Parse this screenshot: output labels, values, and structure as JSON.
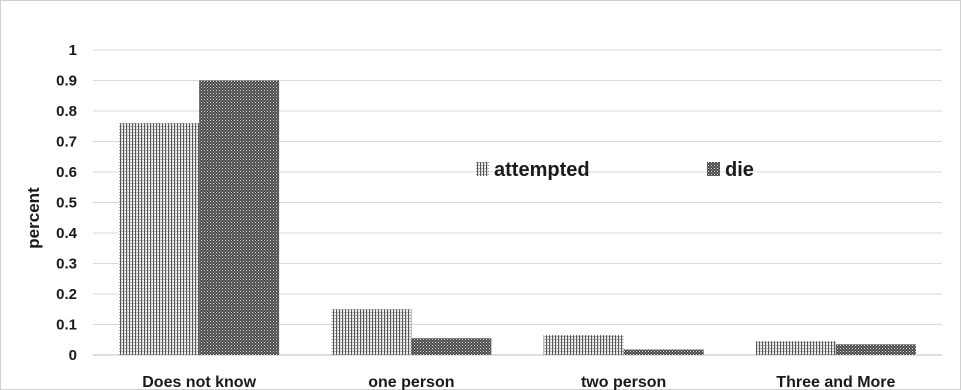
{
  "chart_data": {
    "type": "bar",
    "ylabel": "percent",
    "ylim": [
      0,
      1
    ],
    "yticks": [
      "0",
      "0.1",
      "0.2",
      "0.3",
      "0.4",
      "0.5",
      "0.6",
      "0.7",
      "0.8",
      "0.9",
      "1"
    ],
    "categories": [
      "Does not know",
      "one person",
      "two person",
      "Three and More"
    ],
    "series": [
      {
        "name": "attempted",
        "values": [
          0.76,
          0.15,
          0.065,
          0.045
        ],
        "pattern": "vertical-lines"
      },
      {
        "name": "die",
        "values": [
          0.9,
          0.055,
          0.018,
          0.035
        ],
        "pattern": "crosshatch"
      }
    ],
    "grid": true,
    "legend_position": "center-right",
    "colors": {
      "grid": "#d9d9d9",
      "ink": "#1a1a1a"
    }
  }
}
